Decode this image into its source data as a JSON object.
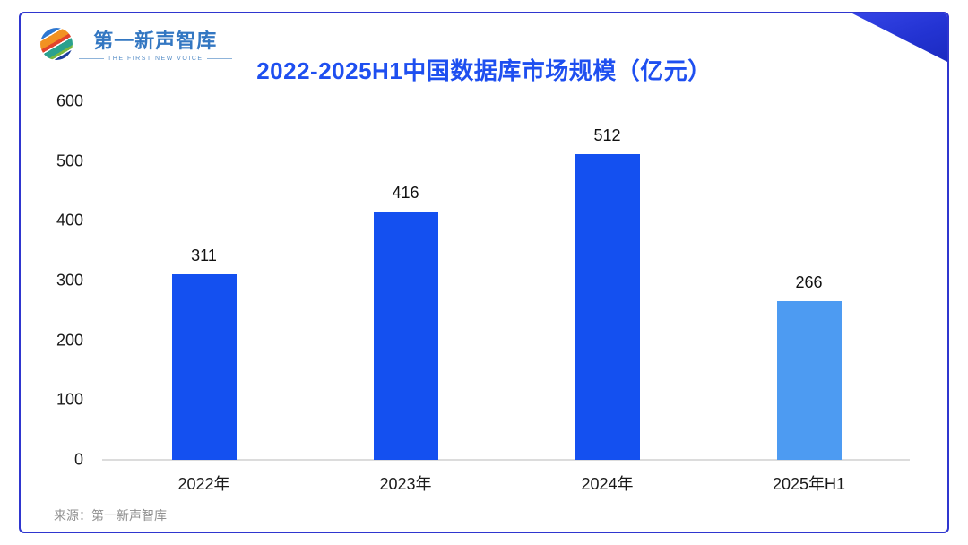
{
  "logo": {
    "name": "第一新声智库",
    "tagline": "THE FIRST NEW VOICE",
    "icon": "colorful-globe-icon"
  },
  "chart_data": {
    "type": "bar",
    "title": "2022-2025H1中国数据库市场规模（亿元）",
    "categories": [
      "2022年",
      "2023年",
      "2024年",
      "2025年H1"
    ],
    "values": [
      311,
      416,
      512,
      266
    ],
    "bar_colors": [
      "#1450F0",
      "#1450F0",
      "#1450F0",
      "#4D9BF2"
    ],
    "value_labels": [
      311,
      416,
      512,
      266
    ],
    "xlabel": "",
    "ylabel": "",
    "ylim": [
      0,
      600
    ],
    "yticks": [
      0,
      100,
      200,
      300,
      400,
      500,
      600
    ],
    "grid": false,
    "legend": false
  },
  "source": {
    "label": "来源：第一新声智库"
  },
  "colors": {
    "title_text": "#1e4ff0",
    "card_border": "#2f36cf",
    "corner_triangle": "#2333d2",
    "bar_primary": "#1450F0",
    "bar_highlight": "#4D9BF2",
    "axis_line": "#dcdcdc",
    "tick_text": "#1a1a1a",
    "value_text": "#111111",
    "source_text": "#909090",
    "logo_text": "#3377c2"
  }
}
